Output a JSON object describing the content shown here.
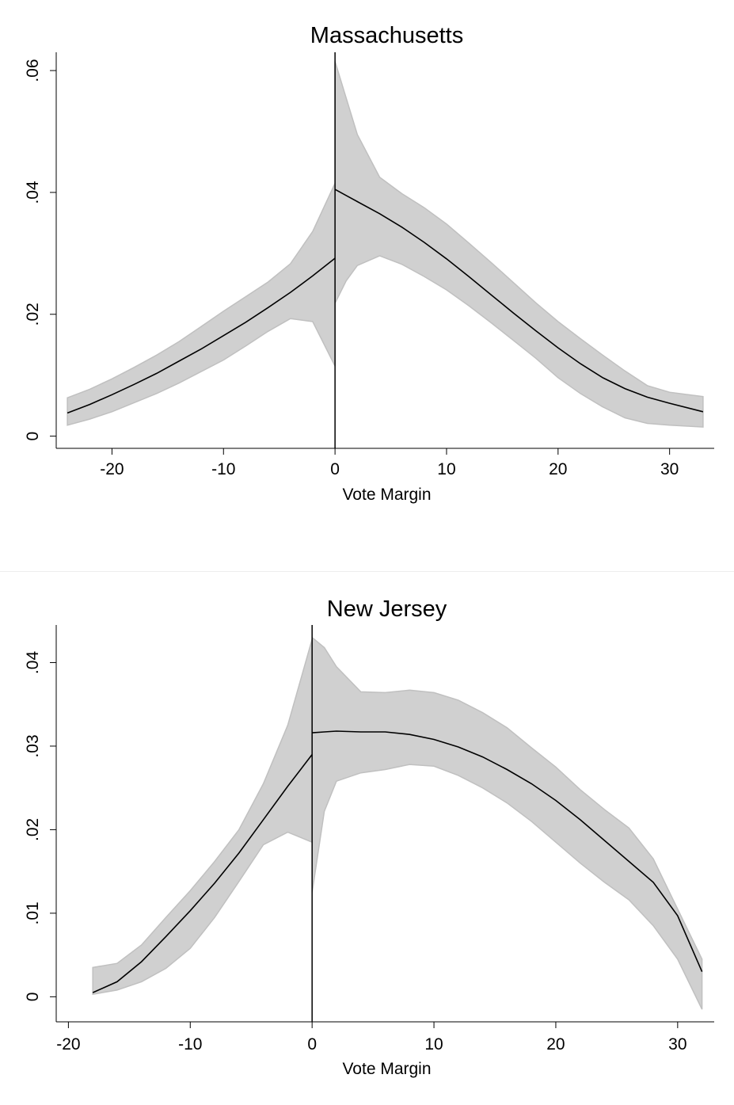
{
  "chart_data": [
    {
      "type": "line",
      "title": "Massachusetts",
      "xlabel": "Vote Margin",
      "ylabel": "",
      "xlim": [
        -25,
        34
      ],
      "ylim": [
        -0.002,
        0.063
      ],
      "xticks": [
        -20,
        -10,
        0,
        10,
        20,
        30
      ],
      "xtick_labels": [
        "-20",
        "-10",
        "0",
        "10",
        "20",
        "30"
      ],
      "yticks": [
        0,
        0.02,
        0.04,
        0.06
      ],
      "ytick_labels": [
        "0",
        ".02",
        ".04",
        ".06"
      ],
      "grid": false,
      "cutoff": 0,
      "colors": {
        "line": "#000000",
        "band": "#d0d0d0",
        "band_edge": "#c0c0c0"
      },
      "series": [
        {
          "segment": "left",
          "x": [
            -24,
            -22,
            -20,
            -18,
            -16,
            -14,
            -12,
            -10,
            -8,
            -6,
            -4,
            -2,
            0
          ],
          "y": [
            0.0038,
            0.0052,
            0.0068,
            0.0085,
            0.0103,
            0.0123,
            0.0143,
            0.0165,
            0.0187,
            0.0211,
            0.0236,
            0.0263,
            0.0292
          ],
          "lower": [
            0.0018,
            0.0028,
            0.004,
            0.0055,
            0.007,
            0.0087,
            0.0106,
            0.0125,
            0.0148,
            0.0172,
            0.0193,
            0.0188,
            0.0115
          ],
          "upper": [
            0.0063,
            0.0077,
            0.0094,
            0.0113,
            0.0133,
            0.0155,
            0.018,
            0.0205,
            0.0229,
            0.0253,
            0.0283,
            0.0336,
            0.0415
          ]
        },
        {
          "segment": "right",
          "x": [
            0,
            1,
            2,
            4,
            6,
            8,
            10,
            12,
            14,
            16,
            18,
            20,
            22,
            24,
            26,
            28,
            30,
            33
          ],
          "y": [
            0.0405,
            0.0395,
            0.0385,
            0.0365,
            0.0343,
            0.0318,
            0.0291,
            0.0262,
            0.0232,
            0.0202,
            0.0173,
            0.0145,
            0.0119,
            0.0096,
            0.0078,
            0.0064,
            0.0054,
            0.004
          ],
          "lower": [
            0.0218,
            0.0255,
            0.028,
            0.0296,
            0.0282,
            0.0262,
            0.024,
            0.0214,
            0.0186,
            0.0157,
            0.0128,
            0.0096,
            0.007,
            0.0048,
            0.003,
            0.0021,
            0.0018,
            0.0015
          ],
          "upper": [
            0.0615,
            0.0555,
            0.0495,
            0.0425,
            0.0398,
            0.0375,
            0.0348,
            0.0317,
            0.0285,
            0.0252,
            0.0219,
            0.0188,
            0.016,
            0.0133,
            0.0107,
            0.0083,
            0.0072,
            0.0065
          ]
        }
      ]
    },
    {
      "type": "line",
      "title": "New Jersey",
      "xlabel": "Vote Margin",
      "ylabel": "",
      "xlim": [
        -21,
        33
      ],
      "ylim": [
        -0.003,
        0.0445
      ],
      "xticks": [
        -20,
        -10,
        0,
        10,
        20,
        30
      ],
      "xtick_labels": [
        "-20",
        "-10",
        "0",
        "10",
        "20",
        "30"
      ],
      "yticks": [
        0,
        0.01,
        0.02,
        0.03,
        0.04
      ],
      "ytick_labels": [
        "0",
        ".01",
        ".02",
        ".03",
        ".04"
      ],
      "grid": false,
      "cutoff": 0,
      "colors": {
        "line": "#000000",
        "band": "#d0d0d0",
        "band_edge": "#c0c0c0"
      },
      "series": [
        {
          "segment": "left",
          "x": [
            -18,
            -16,
            -14,
            -12,
            -10,
            -8,
            -6,
            -4,
            -2,
            0
          ],
          "y": [
            0.0005,
            0.0018,
            0.0042,
            0.0072,
            0.0103,
            0.0136,
            0.0172,
            0.0212,
            0.0252,
            0.029
          ],
          "lower": [
            0.0003,
            0.0008,
            0.0018,
            0.0034,
            0.0058,
            0.0095,
            0.0138,
            0.0182,
            0.0197,
            0.0185
          ],
          "upper": [
            0.0035,
            0.004,
            0.0062,
            0.0095,
            0.0127,
            0.0162,
            0.02,
            0.0255,
            0.0325,
            0.0428
          ]
        },
        {
          "segment": "right",
          "x": [
            0,
            1,
            2,
            4,
            6,
            8,
            10,
            12,
            14,
            16,
            18,
            20,
            22,
            24,
            26,
            28,
            30,
            32
          ],
          "y": [
            0.0316,
            0.0317,
            0.0318,
            0.0317,
            0.0317,
            0.0314,
            0.0308,
            0.0299,
            0.0287,
            0.0272,
            0.0255,
            0.0235,
            0.0212,
            0.0187,
            0.0162,
            0.0137,
            0.0097,
            0.003
          ],
          "lower": [
            0.0125,
            0.0222,
            0.0258,
            0.0268,
            0.0272,
            0.0278,
            0.0276,
            0.0265,
            0.025,
            0.0232,
            0.021,
            0.0185,
            0.016,
            0.0137,
            0.0116,
            0.0085,
            0.0045,
            -0.0015
          ],
          "upper": [
            0.043,
            0.0418,
            0.0395,
            0.0365,
            0.0364,
            0.0367,
            0.0364,
            0.0355,
            0.034,
            0.0322,
            0.0298,
            0.0275,
            0.0248,
            0.0224,
            0.0202,
            0.0165,
            0.0105,
            0.0045
          ]
        }
      ]
    }
  ]
}
